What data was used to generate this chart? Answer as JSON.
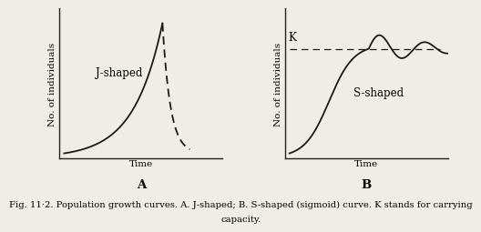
{
  "caption_line1": "Fig. 11·2. Population growth curves. A. J-shaped; B. S-shaped (sigmoid) curve. K stands for carrying",
  "caption_line2": "capacity.",
  "background_color": "#f0ece6",
  "curve_color": "#1a1a1a",
  "label_A": "A",
  "label_B": "B",
  "label_J": "J-shaped",
  "label_S": "S-shaped",
  "label_K": "K",
  "xlabel": "Time",
  "ylabel": "No. of individuals",
  "caption_fontsize": 7.2,
  "axis_label_fontsize": 7.5,
  "curve_label_fontsize": 8.5,
  "panel_label_fontsize": 9.5,
  "K_level": 0.78
}
